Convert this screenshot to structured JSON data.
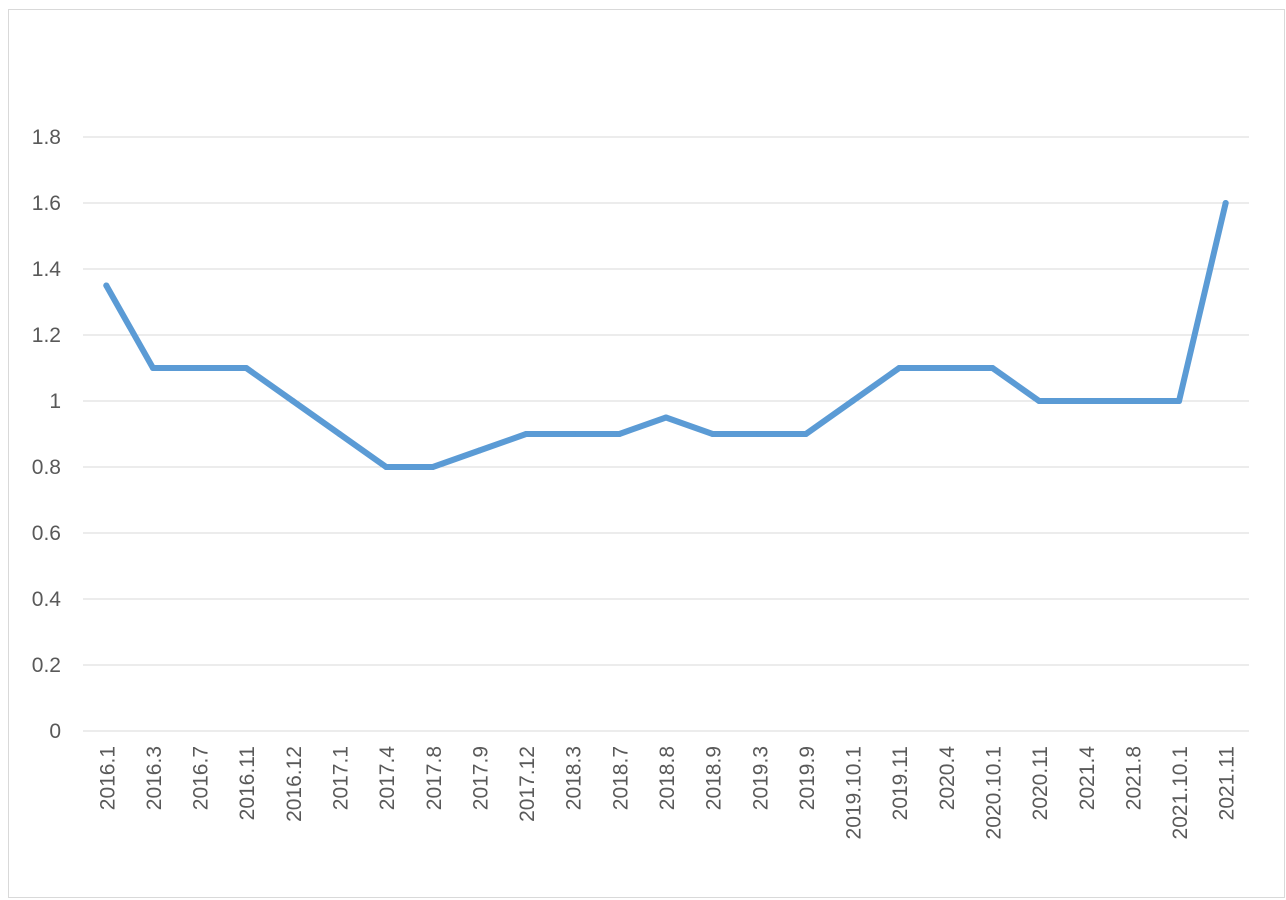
{
  "chart_data": {
    "type": "line",
    "title": "",
    "xlabel": "",
    "ylabel": "",
    "ylim": [
      0,
      1.8
    ],
    "yticks": [
      "0",
      "0.2",
      "0.4",
      "0.6",
      "0.8",
      "1",
      "1.2",
      "1.4",
      "1.6",
      "1.8"
    ],
    "grid": true,
    "legend": "none",
    "line_color": "#5B9BD5",
    "categories": [
      "2016.1",
      "2016.3",
      "2016.7",
      "2016.11",
      "2016.12",
      "2017.1",
      "2017.4",
      "2017.8",
      "2017.9",
      "2017.12",
      "2018.3",
      "2018.7",
      "2018.8",
      "2018.9",
      "2019.3",
      "2019.9",
      "2019.10.1",
      "2019.11",
      "2020.4",
      "2020.10.1",
      "2020.11",
      "2021.4",
      "2021.8",
      "2021.10.1",
      "2021.11"
    ],
    "series": [
      {
        "values": [
          1.35,
          1.1,
          1.1,
          1.1,
          1.0,
          0.9,
          0.8,
          0.8,
          0.85,
          0.9,
          0.9,
          0.9,
          0.95,
          0.9,
          0.9,
          0.9,
          1.0,
          1.1,
          1.1,
          1.1,
          1.0,
          1.0,
          1.0,
          1.0,
          1.6
        ]
      }
    ]
  }
}
